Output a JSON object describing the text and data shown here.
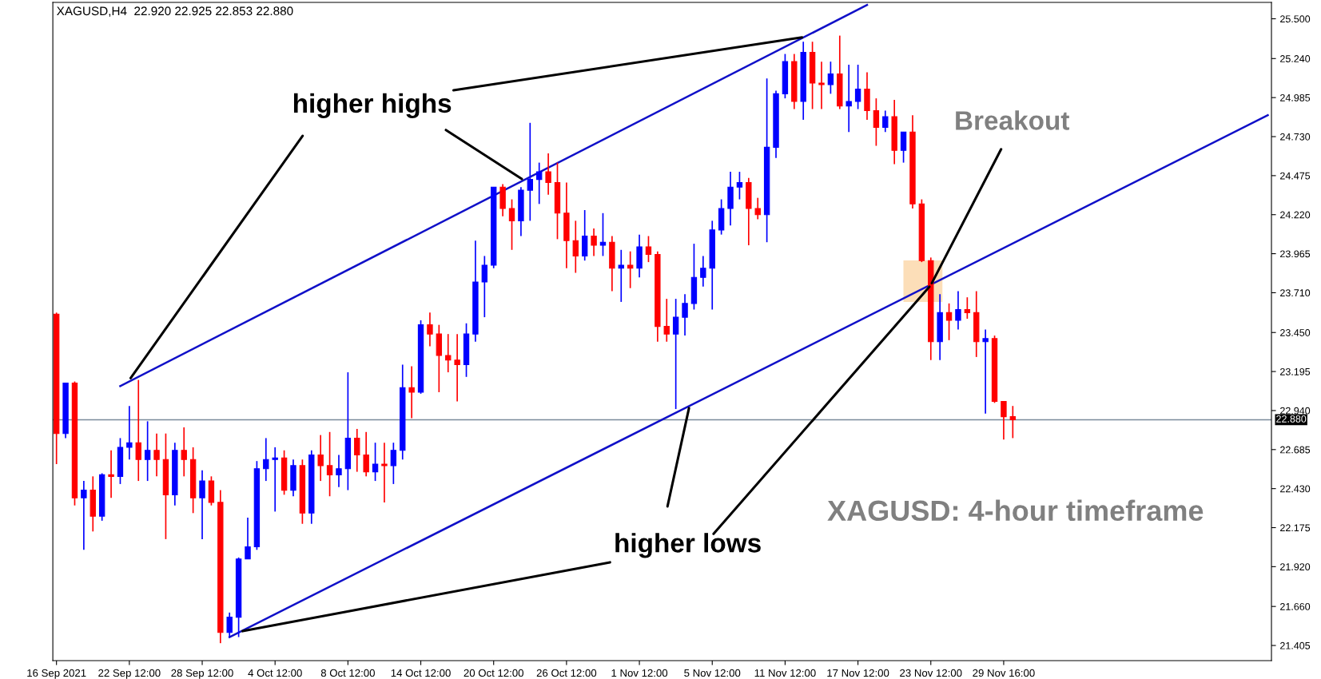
{
  "chart_data": {
    "type": "candlestick",
    "categories": [
      "16 Sep 2021",
      null,
      null,
      null,
      null,
      null,
      null,
      null,
      "22 Sep 12:00",
      null,
      null,
      null,
      null,
      null,
      null,
      null,
      "28 Sep 12:00",
      null,
      null,
      null,
      null,
      null,
      null,
      null,
      "4 Oct 12:00",
      null,
      null,
      null,
      null,
      null,
      null,
      null,
      "8 Oct 12:00",
      null,
      null,
      null,
      null,
      null,
      null,
      null,
      "14 Oct 12:00",
      null,
      null,
      null,
      null,
      null,
      null,
      null,
      "20 Oct 12:00",
      null,
      null,
      null,
      null,
      null,
      null,
      null,
      "26 Oct 12:00",
      null,
      null,
      null,
      null,
      null,
      null,
      null,
      "1 Nov 12:00",
      null,
      null,
      null,
      null,
      null,
      null,
      null,
      "5 Nov 12:00",
      null,
      null,
      null,
      null,
      null,
      null,
      null,
      "11 Nov 12:00",
      null,
      null,
      null,
      null,
      null,
      null,
      null,
      "17 Nov 12:00",
      null,
      null,
      null,
      null,
      null,
      null,
      null,
      "23 Nov 12:00",
      null,
      null,
      null,
      null,
      null,
      null,
      null,
      "29 Nov 16:00",
      null,
      null,
      null,
      null,
      null,
      null,
      null,
      null,
      null,
      null,
      null,
      null,
      null,
      null,
      null,
      null,
      null,
      null,
      null,
      null,
      null,
      null,
      null,
      null,
      null,
      null,
      null,
      null,
      null
    ],
    "ohlc": [
      [
        23.57,
        23.58,
        22.59,
        22.79
      ],
      [
        22.79,
        23.12,
        22.76,
        23.12
      ],
      [
        23.12,
        23.13,
        22.32,
        22.37
      ],
      [
        22.37,
        22.48,
        22.03,
        22.42
      ],
      [
        22.42,
        22.51,
        22.15,
        22.25
      ],
      [
        22.25,
        22.53,
        22.22,
        22.52
      ],
      [
        22.52,
        22.68,
        22.37,
        22.51
      ],
      [
        22.51,
        22.76,
        22.46,
        22.7
      ],
      [
        22.7,
        22.97,
        22.62,
        22.73
      ],
      [
        22.73,
        23.14,
        22.48,
        22.62
      ],
      [
        22.62,
        22.87,
        22.48,
        22.68
      ],
      [
        22.68,
        22.79,
        22.51,
        22.62
      ],
      [
        22.62,
        22.79,
        22.1,
        22.39
      ],
      [
        22.39,
        22.73,
        22.32,
        22.68
      ],
      [
        22.68,
        22.83,
        22.51,
        22.62
      ],
      [
        22.62,
        22.7,
        22.27,
        22.37
      ],
      [
        22.37,
        22.55,
        22.1,
        22.48
      ],
      [
        22.48,
        22.51,
        22.32,
        22.34
      ],
      [
        22.34,
        22.42,
        21.42,
        21.49
      ],
      [
        21.49,
        21.62,
        21.46,
        21.59
      ],
      [
        21.59,
        21.98,
        21.46,
        21.97
      ],
      [
        21.97,
        22.24,
        21.97,
        22.05
      ],
      [
        22.05,
        22.61,
        22.03,
        22.56
      ],
      [
        22.56,
        22.76,
        22.48,
        22.62
      ],
      [
        22.62,
        22.7,
        22.28,
        22.63
      ],
      [
        22.63,
        22.68,
        22.39,
        22.42
      ],
      [
        22.42,
        22.62,
        22.38,
        22.58
      ],
      [
        22.58,
        22.62,
        22.2,
        22.27
      ],
      [
        22.27,
        22.68,
        22.2,
        22.65
      ],
      [
        22.65,
        22.78,
        22.48,
        22.58
      ],
      [
        22.58,
        22.8,
        22.38,
        22.52
      ],
      [
        22.52,
        22.65,
        22.44,
        22.56
      ],
      [
        22.56,
        23.19,
        22.42,
        22.76
      ],
      [
        22.76,
        22.82,
        22.54,
        22.65
      ],
      [
        22.65,
        22.8,
        22.51,
        22.54
      ],
      [
        22.54,
        22.73,
        22.48,
        22.59
      ],
      [
        22.59,
        22.73,
        22.34,
        22.58
      ],
      [
        22.58,
        22.73,
        22.46,
        22.68
      ],
      [
        22.68,
        23.24,
        22.62,
        23.09
      ],
      [
        23.09,
        23.23,
        22.89,
        23.06
      ],
      [
        23.06,
        23.53,
        23.05,
        23.5
      ],
      [
        23.5,
        23.58,
        23.36,
        23.44
      ],
      [
        23.44,
        23.5,
        23.06,
        23.3
      ],
      [
        23.3,
        23.44,
        23.19,
        23.27
      ],
      [
        23.27,
        23.44,
        23.0,
        23.24
      ],
      [
        23.24,
        23.51,
        23.16,
        23.44
      ],
      [
        23.44,
        24.05,
        23.39,
        23.78
      ],
      [
        23.78,
        23.95,
        23.55,
        23.89
      ],
      [
        23.89,
        24.4,
        23.87,
        24.4
      ],
      [
        24.4,
        24.42,
        24.21,
        24.26
      ],
      [
        24.26,
        24.32,
        23.99,
        24.18
      ],
      [
        24.18,
        24.4,
        24.08,
        24.38
      ],
      [
        24.38,
        24.82,
        24.18,
        24.45
      ],
      [
        24.45,
        24.56,
        24.29,
        24.5
      ],
      [
        24.5,
        24.62,
        24.35,
        24.43
      ],
      [
        24.43,
        24.56,
        24.06,
        24.23
      ],
      [
        24.23,
        24.43,
        23.87,
        24.05
      ],
      [
        24.05,
        24.18,
        23.84,
        23.95
      ],
      [
        23.95,
        24.25,
        23.92,
        24.08
      ],
      [
        24.08,
        24.13,
        23.95,
        24.02
      ],
      [
        24.02,
        24.23,
        23.95,
        24.04
      ],
      [
        24.04,
        24.08,
        23.72,
        23.87
      ],
      [
        23.87,
        23.99,
        23.65,
        23.89
      ],
      [
        23.89,
        23.98,
        23.74,
        23.87
      ],
      [
        23.87,
        24.09,
        23.81,
        24.01
      ],
      [
        24.01,
        24.08,
        23.91,
        23.96
      ],
      [
        23.96,
        23.98,
        23.39,
        23.49
      ],
      [
        23.49,
        23.67,
        23.39,
        23.44
      ],
      [
        23.44,
        23.67,
        22.95,
        23.55
      ],
      [
        23.55,
        23.7,
        23.43,
        23.64
      ],
      [
        23.64,
        24.03,
        23.6,
        23.81
      ],
      [
        23.81,
        23.95,
        23.75,
        23.87
      ],
      [
        23.87,
        24.18,
        23.6,
        24.12
      ],
      [
        24.12,
        24.32,
        24.09,
        24.26
      ],
      [
        24.26,
        24.5,
        24.15,
        24.4
      ],
      [
        24.4,
        24.5,
        24.32,
        24.43
      ],
      [
        24.43,
        24.46,
        24.02,
        24.26
      ],
      [
        24.26,
        24.33,
        24.19,
        24.22
      ],
      [
        24.22,
        25.11,
        24.04,
        24.66
      ],
      [
        24.66,
        25.03,
        24.59,
        25.01
      ],
      [
        25.01,
        25.27,
        24.98,
        25.22
      ],
      [
        25.22,
        25.27,
        24.91,
        24.96
      ],
      [
        24.96,
        25.35,
        24.84,
        25.28
      ],
      [
        25.28,
        25.35,
        24.91,
        25.08
      ],
      [
        25.08,
        25.22,
        24.91,
        25.07
      ],
      [
        25.07,
        25.22,
        25.01,
        25.14
      ],
      [
        25.14,
        25.39,
        24.91,
        24.93
      ],
      [
        24.93,
        25.2,
        24.76,
        24.96
      ],
      [
        24.96,
        25.2,
        24.91,
        25.04
      ],
      [
        25.04,
        25.15,
        24.84,
        24.9
      ],
      [
        24.9,
        24.98,
        24.67,
        24.79
      ],
      [
        24.79,
        24.9,
        24.76,
        24.86
      ],
      [
        24.86,
        24.97,
        24.55,
        24.64
      ],
      [
        24.64,
        24.76,
        24.56,
        24.76
      ],
      [
        24.76,
        24.87,
        24.26,
        24.29
      ],
      [
        24.29,
        24.32,
        23.91,
        23.92
      ],
      [
        23.92,
        23.94,
        23.27,
        23.39
      ],
      [
        23.39,
        23.7,
        23.27,
        23.58
      ],
      [
        23.58,
        23.64,
        23.4,
        23.53
      ],
      [
        23.53,
        23.72,
        23.47,
        23.6
      ],
      [
        23.6,
        23.68,
        23.54,
        23.58
      ],
      [
        23.58,
        23.72,
        23.29,
        23.39
      ],
      [
        23.39,
        23.47,
        22.92,
        23.41
      ],
      [
        23.41,
        23.43,
        22.99,
        23.0
      ],
      [
        23.0,
        23.0,
        22.75,
        22.9
      ],
      [
        22.9,
        22.97,
        22.76,
        22.88
      ],
      null,
      null,
      null,
      null,
      null,
      null,
      null,
      null,
      null,
      null,
      null,
      null,
      null,
      null,
      null,
      null,
      null,
      null,
      null,
      null,
      null,
      null,
      null,
      null,
      null,
      null,
      null,
      null
    ],
    "colors": [
      "#ff0000",
      "#0000ff",
      "#ff0000",
      "#0000ff",
      "#ff0000",
      "#0000ff",
      "#ff0000",
      "#0000ff",
      "#0000ff",
      "#ff0000",
      "#0000ff",
      "#ff0000",
      "#ff0000",
      "#0000ff",
      "#ff0000",
      "#ff0000",
      "#0000ff",
      "#ff0000",
      "#ff0000",
      "#0000ff",
      "#0000ff",
      "#0000ff",
      "#0000ff",
      "#0000ff",
      "#0000ff",
      "#ff0000",
      "#0000ff",
      "#ff0000",
      "#0000ff",
      "#ff0000",
      "#ff0000",
      "#0000ff",
      "#0000ff",
      "#ff0000",
      "#ff0000",
      "#0000ff",
      "#ff0000",
      "#0000ff",
      "#0000ff",
      "#ff0000",
      "#0000ff",
      "#ff0000",
      "#ff0000",
      "#ff0000",
      "#ff0000",
      "#0000ff",
      "#0000ff",
      "#0000ff",
      "#0000ff",
      "#ff0000",
      "#ff0000",
      "#0000ff",
      "#0000ff",
      "#0000ff",
      "#ff0000",
      "#ff0000",
      "#ff0000",
      "#ff0000",
      "#0000ff",
      "#ff0000",
      "#0000ff",
      "#ff0000",
      "#0000ff",
      "#ff0000",
      "#0000ff",
      "#ff0000",
      "#ff0000",
      "#ff0000",
      "#0000ff",
      "#0000ff",
      "#0000ff",
      "#0000ff",
      "#0000ff",
      "#0000ff",
      "#0000ff",
      "#0000ff",
      "#ff0000",
      "#ff0000",
      "#0000ff",
      "#0000ff",
      "#0000ff",
      "#ff0000",
      "#0000ff",
      "#ff0000",
      "#ff0000",
      "#0000ff",
      "#ff0000",
      "#0000ff",
      "#0000ff",
      "#ff0000",
      "#ff0000",
      "#0000ff",
      "#ff0000",
      "#0000ff",
      "#ff0000",
      "#ff0000",
      "#ff0000",
      "#0000ff",
      "#ff0000",
      "#0000ff",
      "#ff0000",
      "#ff0000",
      "#0000ff",
      "#ff0000",
      "#ff0000",
      "#ff0000",
      null,
      null,
      null,
      null,
      null,
      null,
      null,
      null,
      null,
      null,
      null,
      null,
      null,
      null,
      null,
      null,
      null,
      null,
      null,
      null,
      null,
      null,
      null,
      null,
      null,
      null,
      null,
      null
    ],
    "series": [
      {
        "type": "line",
        "color": "#1010c8",
        "values": [
          null,
          null,
          null,
          null,
          null,
          null,
          null,
          23.1,
          null,
          null,
          null,
          null,
          null,
          null,
          null,
          null,
          null,
          null,
          null,
          null,
          null,
          null,
          null,
          null,
          null,
          null,
          null,
          null,
          null,
          null,
          null,
          null,
          null,
          null,
          null,
          null,
          null,
          null,
          null,
          null,
          null,
          null,
          null,
          null,
          null,
          null,
          null,
          null,
          null,
          null,
          null,
          null,
          null,
          null,
          null,
          null,
          null,
          null,
          null,
          null,
          null,
          null,
          null,
          null,
          null,
          null,
          null,
          null,
          null,
          null,
          null,
          null,
          null,
          null,
          null,
          null,
          null,
          null,
          null,
          null,
          null,
          null,
          null,
          null,
          null,
          null,
          null,
          null,
          null,
          25.59,
          null,
          null,
          null,
          null,
          null,
          null,
          null,
          null,
          null,
          null,
          null,
          null,
          null,
          null,
          null,
          null,
          null,
          null,
          null,
          null,
          null,
          null,
          null,
          null,
          null,
          null,
          null,
          null,
          null,
          null,
          null,
          null,
          null,
          null,
          null,
          null,
          null,
          null,
          null,
          null,
          null,
          null,
          null,
          null
        ]
      },
      {
        "type": "line",
        "color": "#1010c8",
        "values": [
          null,
          null,
          null,
          null,
          null,
          null,
          null,
          null,
          null,
          null,
          null,
          null,
          null,
          null,
          null,
          null,
          null,
          null,
          null,
          21.46,
          null,
          null,
          null,
          null,
          null,
          null,
          null,
          null,
          null,
          null,
          null,
          null,
          null,
          null,
          null,
          null,
          null,
          null,
          null,
          null,
          null,
          null,
          null,
          null,
          null,
          null,
          null,
          null,
          null,
          null,
          null,
          null,
          null,
          null,
          null,
          null,
          null,
          null,
          null,
          null,
          null,
          null,
          null,
          null,
          null,
          null,
          null,
          null,
          null,
          null,
          null,
          null,
          null,
          null,
          null,
          null,
          null,
          null,
          null,
          null,
          null,
          null,
          null,
          null,
          null,
          null,
          null,
          null,
          null,
          null,
          null,
          null,
          null,
          null,
          null,
          null,
          null,
          null,
          null,
          null,
          null,
          null,
          null,
          null,
          null,
          null,
          null,
          null,
          null,
          null,
          null,
          null,
          null,
          null,
          null,
          null,
          null,
          null,
          null,
          null,
          null,
          null,
          null,
          null,
          null,
          null,
          null,
          null,
          null,
          null,
          null,
          null,
          null,
          24.87
        ]
      }
    ],
    "annotations": [
      "XAGUSD,H4  22.920 22.925 22.853 22.880",
      {
        "text": "higher highs",
        "x": "22 Sep 12:00",
        "y": 23.14
      },
      {
        "text": "higher lows",
        "x": "23 Nov 12:00",
        "y": 23.76
      },
      {
        "text": "Breakout",
        "x": "23 Nov 12:00",
        "y": 23.76
      },
      "XAGUSD: 4-hour timeframe"
    ],
    "ylim": [
      21.306,
      25.607
    ],
    "yticks": [
      {
        "value": 21.405,
        "label": "21.405"
      },
      {
        "value": 21.66,
        "label": "21.660"
      },
      {
        "value": 21.92,
        "label": "21.920"
      },
      {
        "value": 22.175,
        "label": "22.175"
      },
      {
        "value": 22.43,
        "label": "22.430"
      },
      {
        "value": 22.685,
        "label": "22.685"
      },
      {
        "value": 22.94,
        "label": "22.940"
      },
      {
        "value": 23.195,
        "label": "23.195"
      },
      {
        "value": 23.45,
        "label": "23.450"
      },
      {
        "value": 23.71,
        "label": "23.710"
      },
      {
        "value": 23.965,
        "label": "23.965"
      },
      {
        "value": 24.22,
        "label": "24.220"
      },
      {
        "value": 24.475,
        "label": "24.475"
      },
      {
        "value": 24.73,
        "label": "24.730"
      },
      {
        "value": 24.985,
        "label": "24.985"
      },
      {
        "value": 25.24,
        "label": "25.240"
      },
      {
        "value": 25.5,
        "label": "25.500"
      }
    ],
    "ref_lines": [
      {
        "axis": "y",
        "value": 22.88,
        "label": "22.880",
        "color": "#7a8a9a"
      }
    ]
  }
}
